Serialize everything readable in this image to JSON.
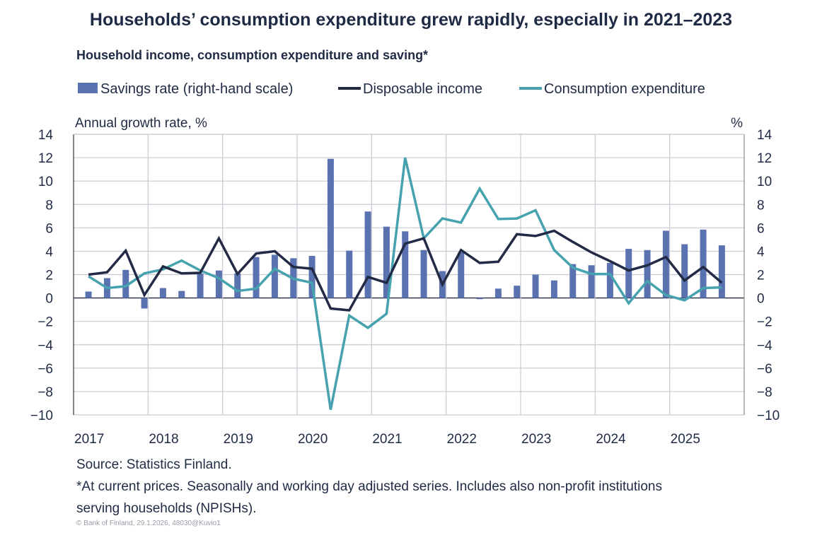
{
  "title": "Households’ consumption expenditure grew rapidly, especially in 2021–2023",
  "subtitle": "Household income, consumption  expenditure and saving*",
  "source": "Source: Statistics Finland.",
  "footnote_line1": "*At current prices. Seasonally and working day adjusted series. Includes also non-profit institutions",
  "footnote_line2": "serving households (NPISHs).",
  "copyright": "© Bank of Finland, 29.1.2026, 48030@Kuvio1",
  "colors": {
    "bars": "#5b72b0",
    "income": "#222a45",
    "consumption": "#46a2ae",
    "grid": "#c9c9d2",
    "text": "#1f2a44"
  },
  "chart_data": {
    "type": "bar+line",
    "ylabel_left": "Annual growth rate, %",
    "ylabel_right": "%",
    "ylim": [
      -10,
      14
    ],
    "yticks": [
      -10,
      -8,
      -6,
      -4,
      -2,
      0,
      2,
      4,
      6,
      8,
      10,
      12,
      14
    ],
    "x_tick_labels": [
      "2017",
      "2018",
      "2019",
      "2020",
      "2021",
      "2022",
      "2023",
      "2024",
      "2025"
    ],
    "x_start": "2017Q1",
    "frequency": "quarterly",
    "grid": true,
    "legend_placement": "top",
    "series": [
      {
        "name": "Savings rate (right-hand scale)",
        "type": "bar",
        "axis": "right",
        "values": [
          0.55,
          1.7,
          2.4,
          -0.9,
          0.85,
          0.6,
          2.1,
          2.35,
          2.1,
          3.5,
          3.7,
          3.4,
          3.6,
          11.9,
          4.05,
          7.4,
          6.1,
          5.7,
          4.1,
          2.3,
          3.9,
          -0.1,
          0.8,
          1.05,
          2.0,
          1.5,
          2.9,
          2.8,
          3.0,
          4.2,
          4.1,
          5.75,
          4.6,
          5.85,
          4.5
        ]
      },
      {
        "name": "Disposable income",
        "type": "line",
        "axis": "left",
        "values": [
          2.0,
          2.2,
          4.05,
          0.25,
          2.7,
          2.1,
          2.15,
          5.1,
          2.05,
          3.8,
          4.0,
          2.65,
          2.5,
          -0.9,
          -1.05,
          1.8,
          1.3,
          4.65,
          5.1,
          1.15,
          4.1,
          3.0,
          3.1,
          5.45,
          5.3,
          5.75,
          4.8,
          3.9,
          3.15,
          2.35,
          2.8,
          3.5,
          1.5,
          2.65,
          1.3
        ]
      },
      {
        "name": "Consumption expenditure",
        "type": "line",
        "axis": "left",
        "values": [
          1.85,
          0.85,
          1.0,
          2.1,
          2.45,
          3.2,
          2.35,
          1.7,
          0.6,
          0.8,
          2.5,
          1.65,
          1.3,
          -9.55,
          -1.5,
          -2.55,
          -1.35,
          12.0,
          5.1,
          6.8,
          6.45,
          9.35,
          6.75,
          6.8,
          7.5,
          4.1,
          2.6,
          2.05,
          2.05,
          -0.45,
          1.45,
          0.25,
          -0.2,
          0.85,
          0.9
        ]
      }
    ]
  }
}
